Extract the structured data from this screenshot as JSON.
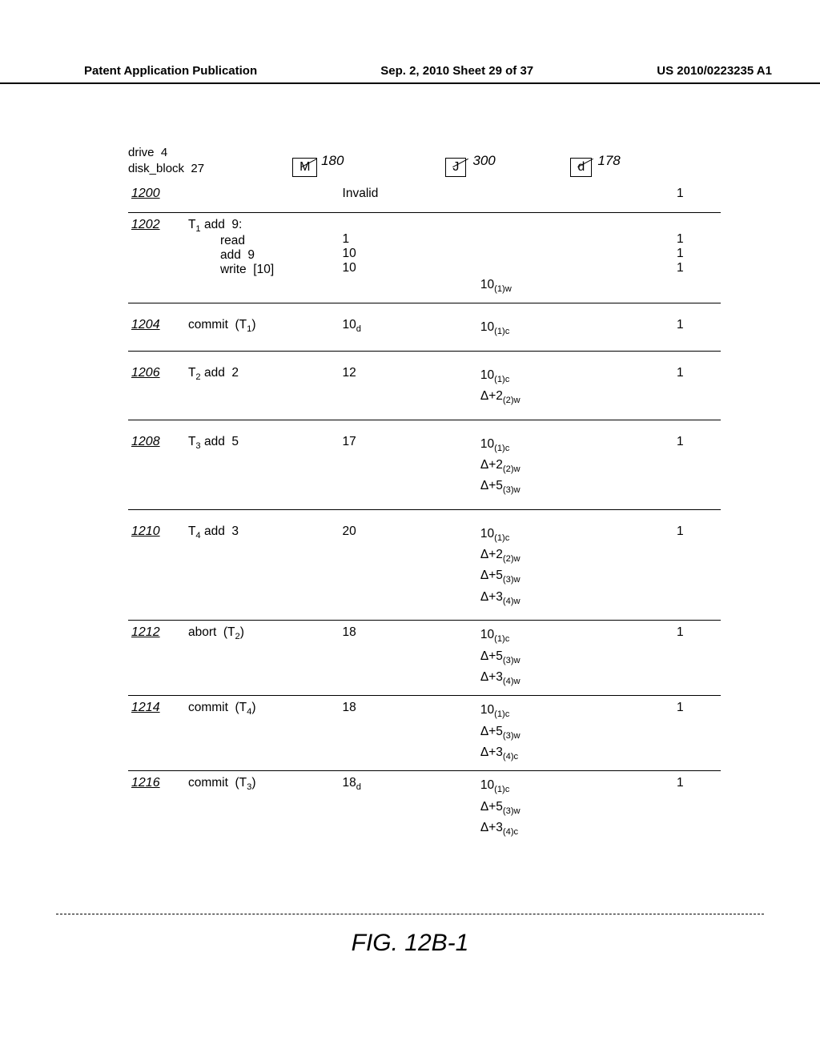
{
  "header": {
    "left": "Patent Application Publication",
    "center": "Sep. 2, 2010  Sheet 29 of 37",
    "right": "US 2010/0223235 A1"
  },
  "figure_caption": "FIG. 12B-1",
  "top": {
    "drive_line1": "drive  4",
    "drive_line2": "disk_block  27",
    "box_M": {
      "letter": "M",
      "num": "180"
    },
    "box_J": {
      "letter": "J",
      "num": "300"
    },
    "box_d": {
      "letter": "d",
      "num": "178"
    }
  },
  "rows": [
    {
      "ref": "1200",
      "op_html": "",
      "m_html": "Invalid",
      "j": [],
      "d": "1",
      "sep": true
    },
    {
      "ref": "1202",
      "op_html": "T<sub>1</sub> add  9:<br><span class='op-sub-line'>read</span><br><span class='op-sub-line'>add  9</span><br><span class='op-sub-line'>write  [10]</span>",
      "m_html": "<br>1<br>10<br>10",
      "j": [
        "",
        "",
        "",
        "10<sub>(1)w</sub>"
      ],
      "d": "<br>1<br>1<br>1",
      "sep": true
    },
    {
      "ref": "1204",
      "op_html": "commit  (T<sub>1</sub>)",
      "m_html": "10<sub>d</sub>",
      "j": [
        "10<sub>(1)c</sub>"
      ],
      "d": "1",
      "sep": true,
      "tallgap": true
    },
    {
      "ref": "1206",
      "op_html": "T<sub>2</sub> add  2",
      "m_html": "12",
      "j": [
        "10<sub>(1)c</sub>",
        "Δ+2<sub>(2)w</sub>"
      ],
      "d": "1",
      "sep": true,
      "tallgap": true
    },
    {
      "ref": "1208",
      "op_html": "T<sub>3</sub> add  5",
      "m_html": "17",
      "j": [
        "10<sub>(1)c</sub>",
        "Δ+2<sub>(2)w</sub>",
        "Δ+5<sub>(3)w</sub>"
      ],
      "d": "1",
      "sep": true,
      "tallgap": true
    },
    {
      "ref": "1210",
      "op_html": "T<sub>4</sub> add  3",
      "m_html": "20",
      "j": [
        "10<sub>(1)c</sub>",
        "Δ+2<sub>(2)w</sub>",
        "Δ+5<sub>(3)w</sub>",
        "Δ+3<sub>(4)w</sub>"
      ],
      "d": "1",
      "sep": true,
      "tallgap": true
    },
    {
      "ref": "1212",
      "op_html": "abort  (T<sub>2</sub>)",
      "m_html": "18",
      "j": [
        "10<sub>(1)c</sub>",
        "Δ+5<sub>(3)w</sub>",
        "Δ+3<sub>(4)w</sub>"
      ],
      "d": "1",
      "sep": true
    },
    {
      "ref": "1214",
      "op_html": "commit  (T<sub>4</sub>)",
      "m_html": "18",
      "j": [
        "10<sub>(1)c</sub>",
        "Δ+5<sub>(3)w</sub>",
        "Δ+3<sub>(4)c</sub>"
      ],
      "d": "1",
      "sep": true
    },
    {
      "ref": "1216",
      "op_html": "commit  (T<sub>3</sub>)",
      "m_html": "18<sub>d</sub>",
      "j": [
        "10<sub>(1)c</sub>",
        "Δ+5<sub>(3)w</sub>",
        "Δ+3<sub>(4)c</sub>"
      ],
      "d": "1",
      "sep": false
    }
  ]
}
